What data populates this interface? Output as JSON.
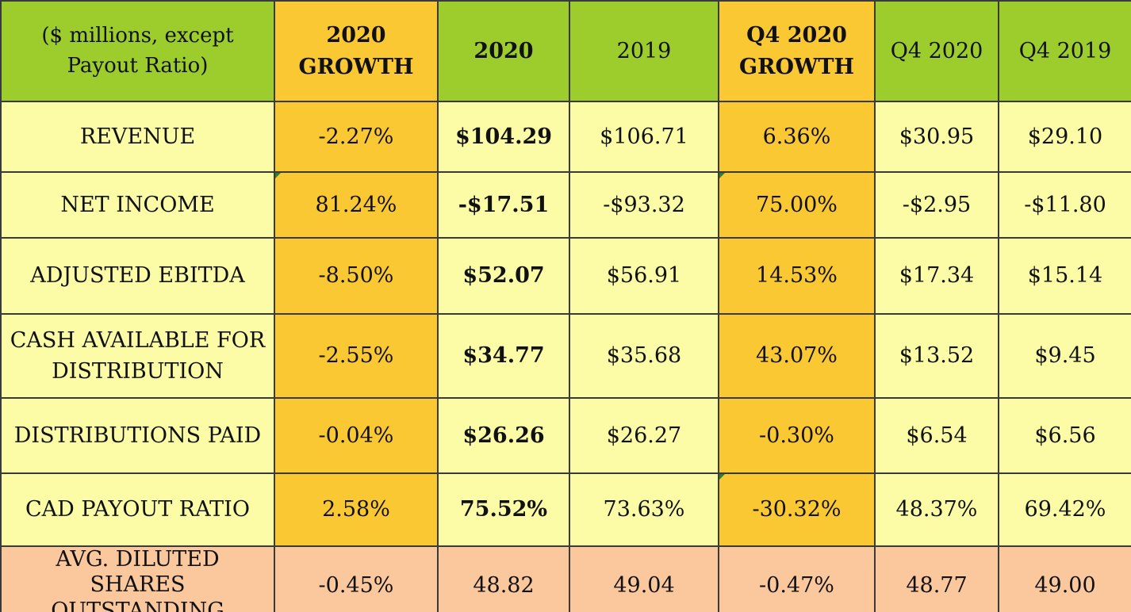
{
  "header": {
    "label": "($ millions, except Payout Ratio)",
    "columns": [
      "2020 GROWTH",
      "2020",
      "2019",
      "Q4 2020 GROWTH",
      "Q4 2020",
      "Q4 2019"
    ]
  },
  "rows": [
    {
      "label": "REVENUE",
      "values": [
        "-2.27%",
        "$104.29",
        "$106.71",
        "6.36%",
        "$30.95",
        "$29.10"
      ]
    },
    {
      "label": "NET INCOME",
      "values": [
        "81.24%",
        "-$17.51",
        "-$93.32",
        "75.00%",
        "-$2.95",
        "-$11.80"
      ]
    },
    {
      "label": "ADJUSTED EBITDA",
      "values": [
        "-8.50%",
        "$52.07",
        "$56.91",
        "14.53%",
        "$17.34",
        "$15.14"
      ]
    },
    {
      "label": "CASH AVAILABLE FOR DISTRIBUTION",
      "values": [
        "-2.55%",
        "$34.77",
        "$35.68",
        "43.07%",
        "$13.52",
        "$9.45"
      ]
    },
    {
      "label": "DISTRIBUTIONS PAID",
      "values": [
        "-0.04%",
        "$26.26",
        "$26.27",
        "-0.30%",
        "$6.54",
        "$6.56"
      ]
    },
    {
      "label": "CAD PAYOUT RATIO",
      "values": [
        "2.58%",
        "75.52%",
        "73.63%",
        "-30.32%",
        "48.37%",
        "69.42%"
      ]
    },
    {
      "label": "AVG. DILUTED SHARES OUTSTANDING",
      "values": [
        "-0.45%",
        "48.82",
        "49.04",
        "-0.47%",
        "48.77",
        "49.00"
      ]
    }
  ],
  "colors": {
    "header_green": "#9dcc2d",
    "growth_orange": "#fac832",
    "row_yellow": "#fdfca6",
    "last_row_peach": "#fbc79c"
  }
}
